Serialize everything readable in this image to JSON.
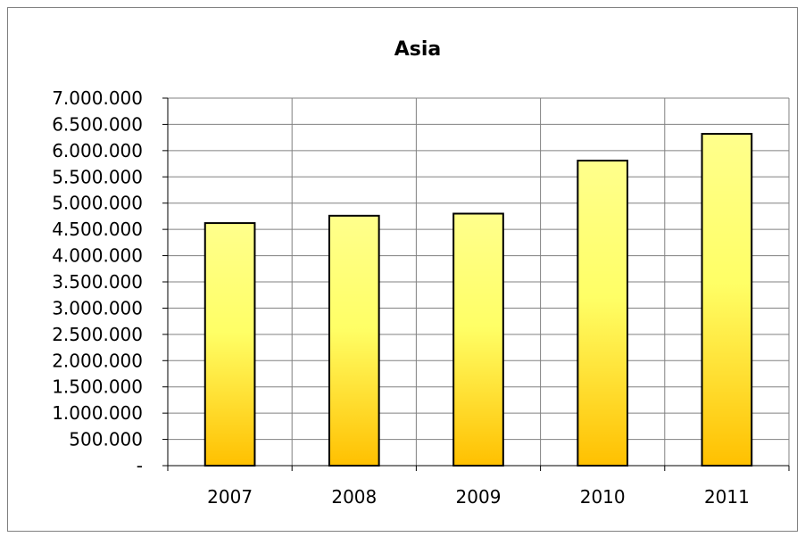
{
  "chart_data": {
    "type": "bar",
    "title": "Asia",
    "xlabel": "",
    "ylabel": "",
    "categories": [
      "2007",
      "2008",
      "2009",
      "2010",
      "2011"
    ],
    "values": [
      4620000,
      4760000,
      4800000,
      5810000,
      6320000
    ],
    "ylim": [
      0,
      7000000
    ],
    "ytick_step": 500000,
    "ytick_labels": [
      "-",
      "500.000",
      "1.000.000",
      "1.500.000",
      "2.000.000",
      "2.500.000",
      "3.000.000",
      "3.500.000",
      "4.000.000",
      "4.500.000",
      "5.000.000",
      "5.500.000",
      "6.000.000",
      "6.500.000",
      "7.000.000"
    ],
    "grid": true,
    "legend": "none",
    "colors": {
      "bar_top": "#ffff8c",
      "bar_mid": "#ffff66",
      "bar_bottom": "#ffc000",
      "bar_outline": "#000000",
      "grid": "#808080",
      "axis": "#000000"
    }
  }
}
